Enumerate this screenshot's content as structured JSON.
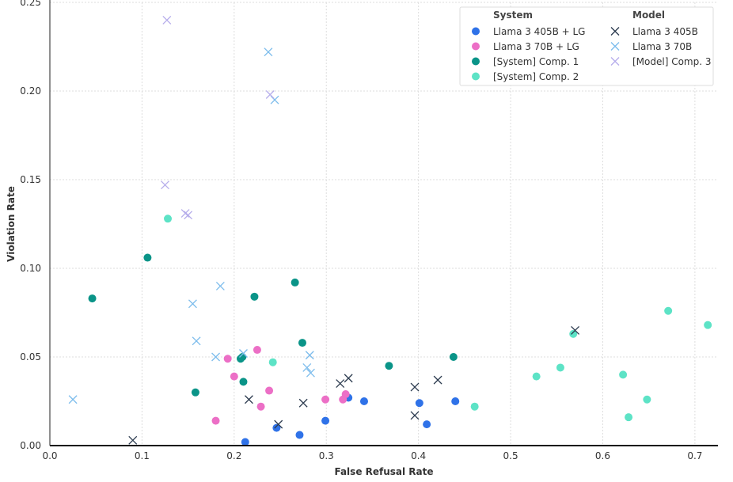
{
  "chart_data": {
    "type": "scatter",
    "xlabel": "False Refusal Rate",
    "ylabel": "Violation Rate",
    "xlim": [
      0.0,
      0.725
    ],
    "ylim": [
      0.0,
      0.25
    ],
    "xticks": [
      0.0,
      0.1,
      0.2,
      0.3,
      0.4,
      0.5,
      0.6,
      0.7
    ],
    "xtick_labels": [
      "0.0",
      "0.1",
      "0.2",
      "0.3",
      "0.4",
      "0.5",
      "0.6",
      "0.7"
    ],
    "yticks": [
      0.0,
      0.05,
      0.1,
      0.15,
      0.2,
      0.25
    ],
    "ytick_labels": [
      "0.00",
      "0.05",
      "0.10",
      "0.15",
      "0.20",
      "0.25"
    ],
    "grid": true,
    "legend_position": "top-right",
    "legend_groups": [
      {
        "title": "System",
        "entries": [
          {
            "label": "Llama 3 405B + LG",
            "marker": "circle",
            "color": "#2f72e8"
          },
          {
            "label": "Llama 3 70B + LG",
            "marker": "circle",
            "color": "#ec6fc6"
          },
          {
            "label": "[System] Comp. 1",
            "marker": "circle",
            "color": "#0a9488"
          },
          {
            "label": "[System] Comp. 2",
            "marker": "circle",
            "color": "#5de3c6"
          }
        ]
      },
      {
        "title": "Model",
        "entries": [
          {
            "label": "Llama 3 405B",
            "marker": "x",
            "color": "#2b3a4e"
          },
          {
            "label": "Llama 3 70B",
            "marker": "x",
            "color": "#7cbcec"
          },
          {
            "label": "[Model] Comp. 3",
            "marker": "x",
            "color": "#b6adeb"
          }
        ]
      }
    ],
    "series": [
      {
        "name": "Llama 3 405B + LG",
        "marker": "circle",
        "color": "#2f72e8",
        "points": [
          [
            0.212,
            0.002
          ],
          [
            0.246,
            0.01
          ],
          [
            0.271,
            0.006
          ],
          [
            0.299,
            0.014
          ],
          [
            0.324,
            0.027
          ],
          [
            0.341,
            0.025
          ],
          [
            0.401,
            0.024
          ],
          [
            0.409,
            0.012
          ],
          [
            0.44,
            0.025
          ]
        ]
      },
      {
        "name": "Llama 3 70B + LG",
        "marker": "circle",
        "color": "#ec6fc6",
        "points": [
          [
            0.18,
            0.014
          ],
          [
            0.193,
            0.049
          ],
          [
            0.2,
            0.039
          ],
          [
            0.225,
            0.054
          ],
          [
            0.229,
            0.022
          ],
          [
            0.238,
            0.031
          ],
          [
            0.299,
            0.026
          ],
          [
            0.318,
            0.026
          ],
          [
            0.321,
            0.029
          ]
        ]
      },
      {
        "name": "[System] Comp. 1",
        "marker": "circle",
        "color": "#0a9488",
        "points": [
          [
            0.046,
            0.083
          ],
          [
            0.106,
            0.106
          ],
          [
            0.158,
            0.03
          ],
          [
            0.207,
            0.049
          ],
          [
            0.209,
            0.05
          ],
          [
            0.21,
            0.036
          ],
          [
            0.222,
            0.084
          ],
          [
            0.266,
            0.092
          ],
          [
            0.274,
            0.058
          ],
          [
            0.368,
            0.045
          ],
          [
            0.438,
            0.05
          ]
        ]
      },
      {
        "name": "[System] Comp. 2",
        "marker": "circle",
        "color": "#5de3c6",
        "points": [
          [
            0.128,
            0.128
          ],
          [
            0.242,
            0.047
          ],
          [
            0.461,
            0.022
          ],
          [
            0.528,
            0.039
          ],
          [
            0.554,
            0.044
          ],
          [
            0.568,
            0.063
          ],
          [
            0.622,
            0.04
          ],
          [
            0.628,
            0.016
          ],
          [
            0.648,
            0.026
          ],
          [
            0.671,
            0.076
          ],
          [
            0.714,
            0.068
          ]
        ]
      },
      {
        "name": "Llama 3 405B",
        "marker": "x",
        "color": "#2b3a4e",
        "points": [
          [
            0.09,
            0.003
          ],
          [
            0.216,
            0.026
          ],
          [
            0.248,
            0.012
          ],
          [
            0.275,
            0.024
          ],
          [
            0.315,
            0.035
          ],
          [
            0.324,
            0.038
          ],
          [
            0.396,
            0.033
          ],
          [
            0.396,
            0.017
          ],
          [
            0.421,
            0.037
          ],
          [
            0.57,
            0.065
          ]
        ]
      },
      {
        "name": "Llama 3 70B",
        "marker": "x",
        "color": "#7cbcec",
        "points": [
          [
            0.025,
            0.026
          ],
          [
            0.155,
            0.08
          ],
          [
            0.159,
            0.059
          ],
          [
            0.18,
            0.05
          ],
          [
            0.185,
            0.09
          ],
          [
            0.21,
            0.052
          ],
          [
            0.237,
            0.222
          ],
          [
            0.244,
            0.195
          ],
          [
            0.279,
            0.044
          ],
          [
            0.282,
            0.051
          ],
          [
            0.283,
            0.041
          ]
        ]
      },
      {
        "name": "[Model] Comp. 3",
        "marker": "x",
        "color": "#b6adeb",
        "points": [
          [
            0.125,
            0.147
          ],
          [
            0.127,
            0.24
          ],
          [
            0.147,
            0.131
          ],
          [
            0.15,
            0.13
          ],
          [
            0.239,
            0.198
          ]
        ]
      }
    ]
  }
}
